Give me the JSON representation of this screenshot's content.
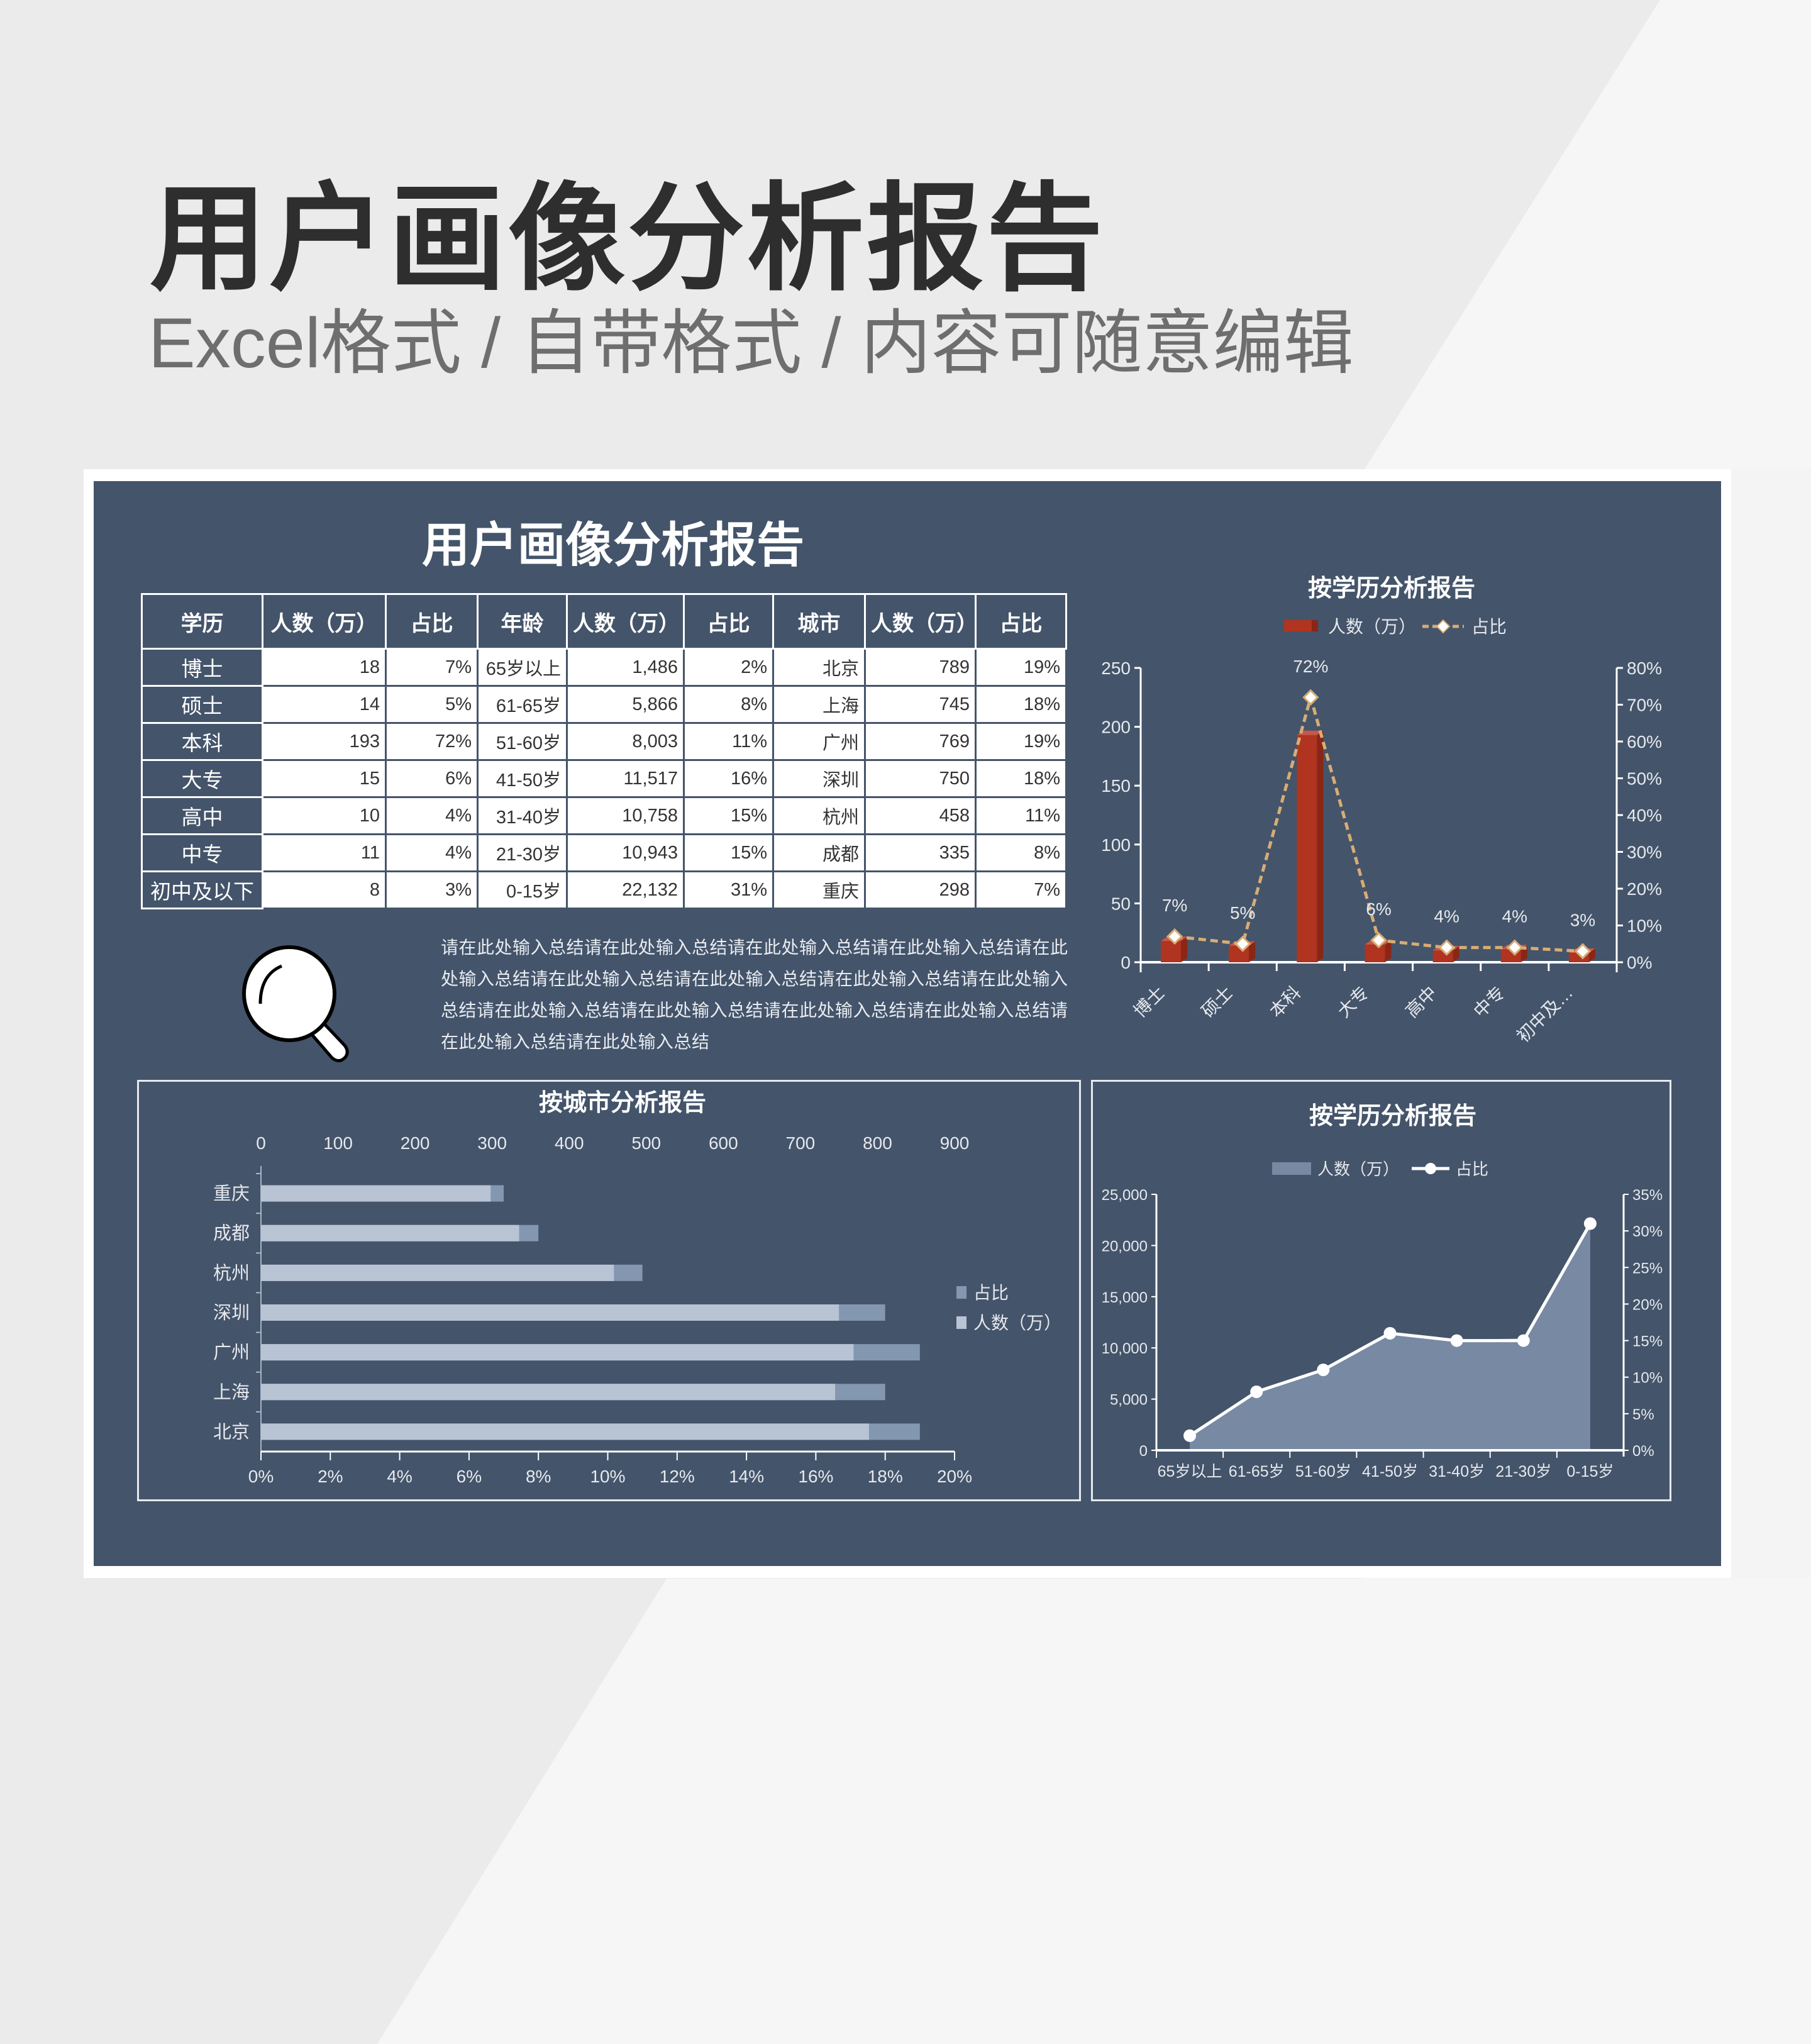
{
  "header": {
    "title": "用户画像分析报告",
    "subtitle": "Excel格式 / 自带格式 / 内容可随意编辑"
  },
  "panel": {
    "title": "用户画像分析报告",
    "summary": "请在此处输入总结请在此处输入总结请在此处输入总结请在此处输入总结请在此处输入总结请在此处输入总结请在此处输入总结请在此处输入总结请在此处输入总结请在此处输入总结请在此处输入总结请在此处输入总结请在此处输入总结请在此处输入总结请在此处输入总结"
  },
  "table": {
    "headers": [
      "学历",
      "人数（万）",
      "占比",
      "年龄",
      "人数（万）",
      "占比",
      "城市",
      "人数（万）",
      "占比"
    ],
    "rows": [
      [
        "博士",
        "18",
        "7%",
        "65岁以上",
        "1,486",
        "2%",
        "北京",
        "789",
        "19%"
      ],
      [
        "硕士",
        "14",
        "5%",
        "61-65岁",
        "5,866",
        "8%",
        "上海",
        "745",
        "18%"
      ],
      [
        "本科",
        "193",
        "72%",
        "51-60岁",
        "8,003",
        "11%",
        "广州",
        "769",
        "19%"
      ],
      [
        "大专",
        "15",
        "6%",
        "41-50岁",
        "11,517",
        "16%",
        "深圳",
        "750",
        "18%"
      ],
      [
        "高中",
        "10",
        "4%",
        "31-40岁",
        "10,758",
        "15%",
        "杭州",
        "458",
        "11%"
      ],
      [
        "中专",
        "11",
        "4%",
        "21-30岁",
        "10,943",
        "15%",
        "成都",
        "335",
        "8%"
      ],
      [
        "初中及以下",
        "8",
        "3%",
        "0-15岁",
        "22,132",
        "31%",
        "重庆",
        "298",
        "7%"
      ]
    ]
  },
  "icons": {
    "summary_icon": "magnifier-icon"
  },
  "colors": {
    "panel_bg": "#44546a",
    "bar_red": "#b03420",
    "line_tan": "#d7ad74",
    "bar_light": "#b8c4d4",
    "bar_dark": "#8497b0",
    "area": "#7789a3"
  },
  "chart_data": [
    {
      "type": "bar",
      "title": "按学历分析报告",
      "categories": [
        "博士",
        "硕士",
        "本科",
        "大专",
        "高中",
        "中专",
        "初中及…"
      ],
      "series": [
        {
          "name": "人数（万）",
          "type": "bar",
          "axis": "left",
          "values": [
            18,
            14,
            193,
            15,
            10,
            11,
            8
          ]
        },
        {
          "name": "占比",
          "type": "line",
          "axis": "right",
          "values": [
            7,
            5,
            72,
            6,
            4,
            4,
            3
          ],
          "labels": [
            "7%",
            "5%",
            "72%",
            "6%",
            "4%",
            "4%",
            "3%"
          ]
        }
      ],
      "y_left": {
        "range": [
          0,
          250
        ],
        "ticks": [
          "0",
          "50",
          "100",
          "150",
          "200",
          "250"
        ]
      },
      "y_right": {
        "range": [
          0,
          80
        ],
        "ticks": [
          "0%",
          "10%",
          "20%",
          "30%",
          "40%",
          "50%",
          "60%",
          "70%",
          "80%"
        ]
      },
      "legend": "top",
      "grid": false
    },
    {
      "type": "bar",
      "orientation": "horizontal",
      "title": "按城市分析报告",
      "categories": [
        "重庆",
        "成都",
        "杭州",
        "深圳",
        "广州",
        "上海",
        "北京"
      ],
      "series": [
        {
          "name": "占比",
          "axis": "bottom",
          "values": [
            7,
            8,
            11,
            18,
            19,
            18,
            19
          ]
        },
        {
          "name": "人数（万）",
          "axis": "top",
          "values": [
            298,
            335,
            458,
            750,
            769,
            745,
            789
          ]
        }
      ],
      "x_top": {
        "range": [
          0,
          900
        ],
        "ticks": [
          "0",
          "100",
          "200",
          "300",
          "400",
          "500",
          "600",
          "700",
          "800",
          "900"
        ]
      },
      "x_bottom": {
        "range": [
          0,
          20
        ],
        "ticks": [
          "0%",
          "2%",
          "4%",
          "6%",
          "8%",
          "10%",
          "12%",
          "14%",
          "16%",
          "18%",
          "20%"
        ]
      },
      "legend": "right",
      "grid": false
    },
    {
      "type": "area",
      "title": "按学历分析报告",
      "categories": [
        "65岁以上",
        "61-65岁",
        "51-60岁",
        "41-50岁",
        "31-40岁",
        "21-30岁",
        "0-15岁"
      ],
      "series": [
        {
          "name": "人数（万）",
          "type": "area",
          "axis": "left",
          "values": [
            1486,
            5866,
            8003,
            11517,
            10758,
            10943,
            22132
          ]
        },
        {
          "name": "占比",
          "type": "line",
          "axis": "right",
          "values": [
            2,
            8,
            11,
            16,
            15,
            15,
            31
          ]
        }
      ],
      "y_left": {
        "range": [
          0,
          25000
        ],
        "ticks": [
          "0",
          "5,000",
          "10,000",
          "15,000",
          "20,000",
          "25,000"
        ]
      },
      "y_right": {
        "range": [
          0,
          35
        ],
        "ticks": [
          "0%",
          "5%",
          "10%",
          "15%",
          "20%",
          "25%",
          "30%",
          "35%"
        ]
      },
      "legend": "top",
      "grid": false
    }
  ]
}
